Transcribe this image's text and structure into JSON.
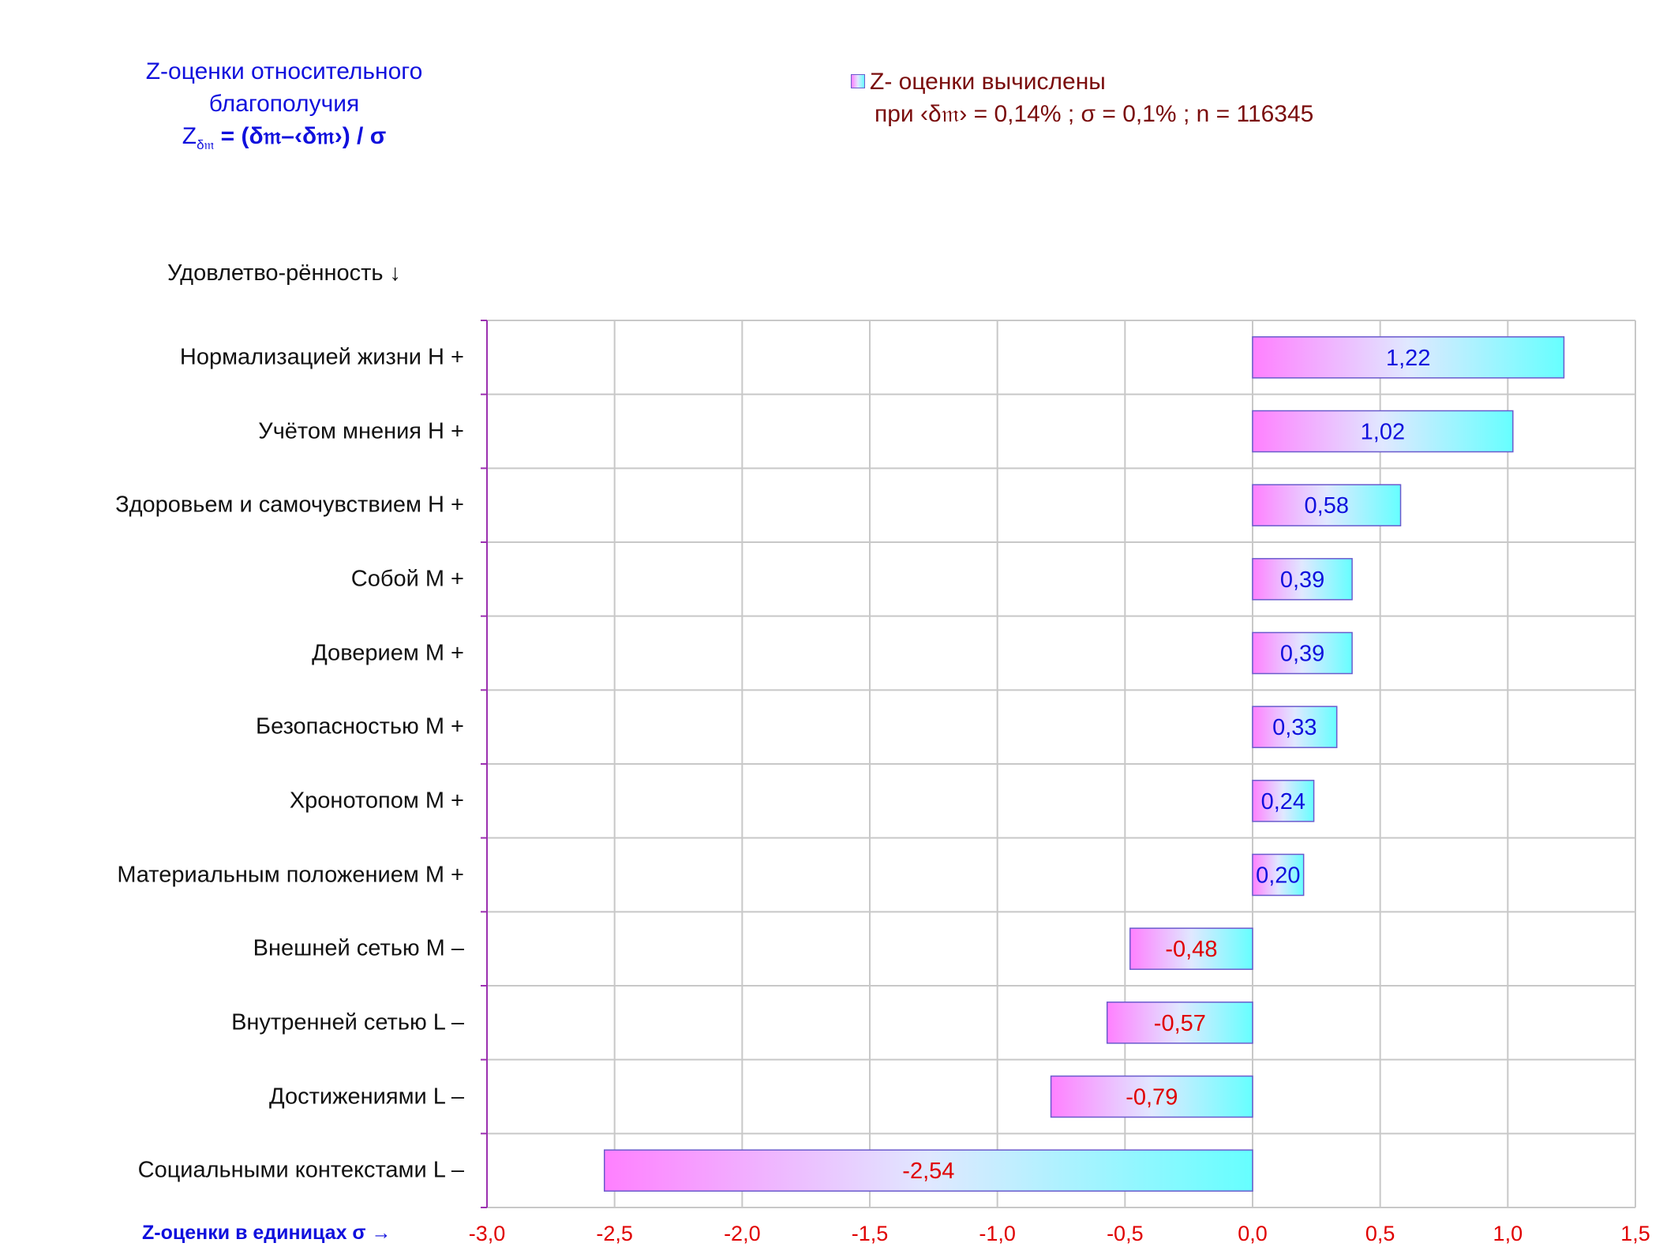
{
  "title": {
    "line1": "Z-оценки  относительного",
    "line2": "благополучия",
    "formula_lhs": "Z",
    "formula_sub": "δ𝔪",
    "formula_rhs": " = (δ𝔪–‹δ𝔪›) / σ"
  },
  "legend": {
    "line1": "Z- оценки вычислены",
    "line2": "при ‹δ𝔪› = 0,14% ; σ = 0,1% ; n = 116345"
  },
  "y_axis_header": "Удовлетво-рённость ↓",
  "x_axis_title": "Z-оценки в единицах σ →",
  "colors": {
    "positive_label": "#1010dd",
    "negative_label": "#e00000",
    "bar_gradient_start": "#ff80ff",
    "bar_gradient_mid": "#e0e8ff",
    "bar_gradient_end": "#66ffff",
    "bar_border": "#6a5acd",
    "grid": "#c8c8c8",
    "axis_line": "#9b30b0"
  },
  "chart_data": {
    "type": "bar",
    "orientation": "horizontal",
    "categories": [
      "Нормализацией жизни  Н +",
      "Учётом мнения  Н +",
      "Здоровьем и самочувствием  Н +",
      "Собой  М +",
      "Доверием  М +",
      "Безопасностью  М +",
      "Хронотопом  М +",
      "Материальным положением  М +",
      "Внешней сетью  М –",
      "Внутренней сетью  L –",
      "Достижениями  L –",
      "Социальными контекстами  L –"
    ],
    "values": [
      1.22,
      1.02,
      0.58,
      0.39,
      0.39,
      0.33,
      0.24,
      0.2,
      -0.48,
      -0.57,
      -0.79,
      -2.54
    ],
    "value_labels": [
      "1,22",
      "1,02",
      "0,58",
      "0,39",
      "0,39",
      "0,33",
      "0,24",
      "0,20",
      "-0,48",
      "-0,57",
      "-0,79",
      "-2,54"
    ],
    "xlim": [
      -3.0,
      1.5
    ],
    "ticks": [
      -3.0,
      -2.5,
      -2.0,
      -1.5,
      -1.0,
      -0.5,
      0.0,
      0.5,
      1.0,
      1.5
    ],
    "tick_labels": [
      "-3,0",
      "-2,5",
      "-2,0",
      "-1,5",
      "-1,0",
      "-0,5",
      "0,0",
      "0,5",
      "1,0",
      "1,5"
    ],
    "grid": true,
    "legend_position": "top-right"
  }
}
